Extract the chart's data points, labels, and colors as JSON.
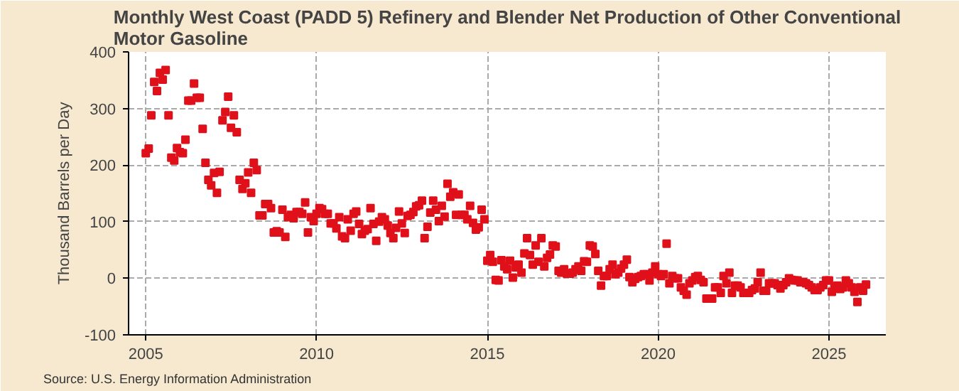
{
  "chart_data": {
    "type": "scatter",
    "title": "Monthly West Coast (PADD 5) Refinery and Blender Net Production of Other Conventional Motor Gasoline",
    "ylabel": "Thousand Barrels per Day",
    "annotations": [
      "Source: U.S. Energy Information Administration"
    ],
    "marker": "square",
    "grid": true,
    "xlim": [
      "2004-07",
      "2026-09"
    ],
    "xticks": [
      "2005",
      "2010",
      "2015",
      "2020",
      "2025"
    ],
    "ylim": [
      -100,
      400
    ],
    "yticks": [
      -100,
      0,
      100,
      200,
      300,
      400
    ],
    "x": [
      "2005-01",
      "2005-02",
      "2005-03",
      "2005-04",
      "2005-05",
      "2005-06",
      "2005-07",
      "2005-08",
      "2005-09",
      "2005-10",
      "2005-11",
      "2005-12",
      "2006-01",
      "2006-02",
      "2006-03",
      "2006-04",
      "2006-05",
      "2006-06",
      "2006-07",
      "2006-08",
      "2006-09",
      "2006-10",
      "2006-11",
      "2006-12",
      "2007-01",
      "2007-02",
      "2007-03",
      "2007-04",
      "2007-05",
      "2007-06",
      "2007-07",
      "2007-08",
      "2007-09",
      "2007-10",
      "2007-11",
      "2007-12",
      "2008-01",
      "2008-02",
      "2008-03",
      "2008-04",
      "2008-05",
      "2008-06",
      "2008-07",
      "2008-08",
      "2008-09",
      "2008-10",
      "2008-11",
      "2008-12",
      "2009-01",
      "2009-02",
      "2009-03",
      "2009-04",
      "2009-05",
      "2009-06",
      "2009-07",
      "2009-08",
      "2009-09",
      "2009-10",
      "2009-11",
      "2009-12",
      "2010-01",
      "2010-02",
      "2010-03",
      "2010-04",
      "2010-05",
      "2010-06",
      "2010-07",
      "2010-08",
      "2010-09",
      "2010-10",
      "2010-11",
      "2010-12",
      "2011-01",
      "2011-02",
      "2011-03",
      "2011-04",
      "2011-05",
      "2011-06",
      "2011-07",
      "2011-08",
      "2011-09",
      "2011-10",
      "2011-11",
      "2011-12",
      "2012-01",
      "2012-02",
      "2012-03",
      "2012-04",
      "2012-05",
      "2012-06",
      "2012-07",
      "2012-08",
      "2012-09",
      "2012-10",
      "2012-11",
      "2012-12",
      "2013-01",
      "2013-02",
      "2013-03",
      "2013-04",
      "2013-05",
      "2013-06",
      "2013-07",
      "2013-08",
      "2013-09",
      "2013-10",
      "2013-11",
      "2013-12",
      "2014-01",
      "2014-02",
      "2014-03",
      "2014-04",
      "2014-05",
      "2014-06",
      "2014-07",
      "2014-08",
      "2014-09",
      "2014-10",
      "2014-11",
      "2014-12",
      "2015-01",
      "2015-02",
      "2015-03",
      "2015-04",
      "2015-05",
      "2015-06",
      "2015-07",
      "2015-08",
      "2015-09",
      "2015-10",
      "2015-11",
      "2015-12",
      "2016-01",
      "2016-02",
      "2016-03",
      "2016-04",
      "2016-05",
      "2016-06",
      "2016-07",
      "2016-08",
      "2016-09",
      "2016-10",
      "2016-11",
      "2016-12",
      "2017-01",
      "2017-02",
      "2017-03",
      "2017-04",
      "2017-05",
      "2017-06",
      "2017-07",
      "2017-08",
      "2017-09",
      "2017-10",
      "2017-11",
      "2017-12",
      "2018-01",
      "2018-02",
      "2018-03",
      "2018-04",
      "2018-05",
      "2018-06",
      "2018-07",
      "2018-08",
      "2018-09",
      "2018-10",
      "2018-11",
      "2018-12",
      "2019-01",
      "2019-02",
      "2019-03",
      "2019-04",
      "2019-05",
      "2019-06",
      "2019-07",
      "2019-08",
      "2019-09",
      "2019-10",
      "2019-11",
      "2019-12",
      "2020-01",
      "2020-02",
      "2020-03",
      "2020-04",
      "2020-05",
      "2020-06",
      "2020-07",
      "2020-08",
      "2020-09",
      "2020-10",
      "2020-11",
      "2020-12",
      "2021-01",
      "2021-02",
      "2021-03",
      "2021-04",
      "2021-05",
      "2021-06",
      "2021-07",
      "2021-08",
      "2021-09",
      "2021-10",
      "2021-11",
      "2021-12",
      "2022-01",
      "2022-02",
      "2022-03",
      "2022-04",
      "2022-05",
      "2022-06",
      "2022-07",
      "2022-08",
      "2022-09",
      "2022-10",
      "2022-11",
      "2022-12",
      "2023-01",
      "2023-02",
      "2023-03",
      "2023-04",
      "2023-05",
      "2023-06",
      "2023-07",
      "2023-08",
      "2023-09",
      "2023-10",
      "2023-11",
      "2023-12",
      "2024-01",
      "2024-02",
      "2024-03",
      "2024-04",
      "2024-05",
      "2024-06",
      "2024-07",
      "2024-08",
      "2024-09",
      "2024-10",
      "2024-11",
      "2024-12",
      "2025-01",
      "2025-02",
      "2025-03",
      "2025-04",
      "2025-05",
      "2025-06",
      "2025-07",
      "2025-08",
      "2025-09",
      "2025-10",
      "2025-11",
      "2025-12",
      "2026-01",
      "2026-02"
    ],
    "series": [
      {
        "color": "#e0101a",
        "values": [
          221,
          229,
          288,
          347,
          331,
          363,
          351,
          368,
          288,
          213,
          208,
          230,
          223,
          221,
          245,
          314,
          314,
          344,
          319,
          319,
          264,
          204,
          174,
          164,
          186,
          151,
          188,
          279,
          294,
          321,
          266,
          288,
          258,
          174,
          158,
          168,
          187,
          151,
          204,
          191,
          111,
          111,
          131,
          131,
          124,
          81,
          83,
          81,
          121,
          73,
          108,
          112,
          106,
          117,
          117,
          114,
          134,
          81,
          108,
          101,
          114,
          124,
          122,
          114,
          114,
          97,
          97,
          88,
          108,
          74,
          71,
          104,
          84,
          114,
          118,
          96,
          78,
          84,
          87,
          124,
          96,
          66,
          100,
          108,
          104,
          93,
          80,
          71,
          89,
          118,
          97,
          80,
          110,
          112,
          117,
          127,
          129,
          137,
          71,
          91,
          116,
          137,
          121,
          101,
          128,
          109,
          167,
          144,
          152,
          112,
          148,
          112,
          112,
          104,
          128,
          98,
          86,
          90,
          121,
          104,
          31,
          41,
          29,
          -3,
          -4,
          32,
          21,
          16,
          31,
          1,
          19,
          24,
          10,
          44,
          71,
          41,
          24,
          58,
          29,
          71,
          21,
          36,
          42,
          58,
          56,
          13,
          10,
          16,
          8,
          8,
          10,
          16,
          21,
          13,
          30,
          29,
          58,
          56,
          43,
          13,
          -13,
          4,
          4,
          16,
          24,
          7,
          10,
          17,
          24,
          33,
          2,
          -7,
          -1,
          2,
          4,
          7,
          7,
          -4,
          10,
          21,
          7,
          4,
          7,
          61,
          -9,
          4,
          0,
          0,
          -16,
          -22,
          -29,
          -9,
          -4,
          2,
          4,
          -3,
          -7,
          -36,
          null,
          -36,
          -16,
          -16,
          -26,
          4,
          -9,
          10,
          -26,
          -13,
          -13,
          -16,
          -26,
          null,
          -26,
          -21,
          -18,
          -7,
          10,
          -22,
          -22,
          -9,
          -9,
          -9,
          -12,
          -18,
          -12,
          -7,
          0,
          -3,
          -4,
          -4,
          -7,
          -7,
          -9,
          -12,
          -16,
          -21,
          -21,
          -16,
          -12,
          -4,
          -4,
          -24,
          -16,
          -13,
          -19,
          -16,
          -4,
          -9,
          -16,
          -24,
          -42,
          -16,
          -22,
          -11
        ]
      }
    ]
  }
}
